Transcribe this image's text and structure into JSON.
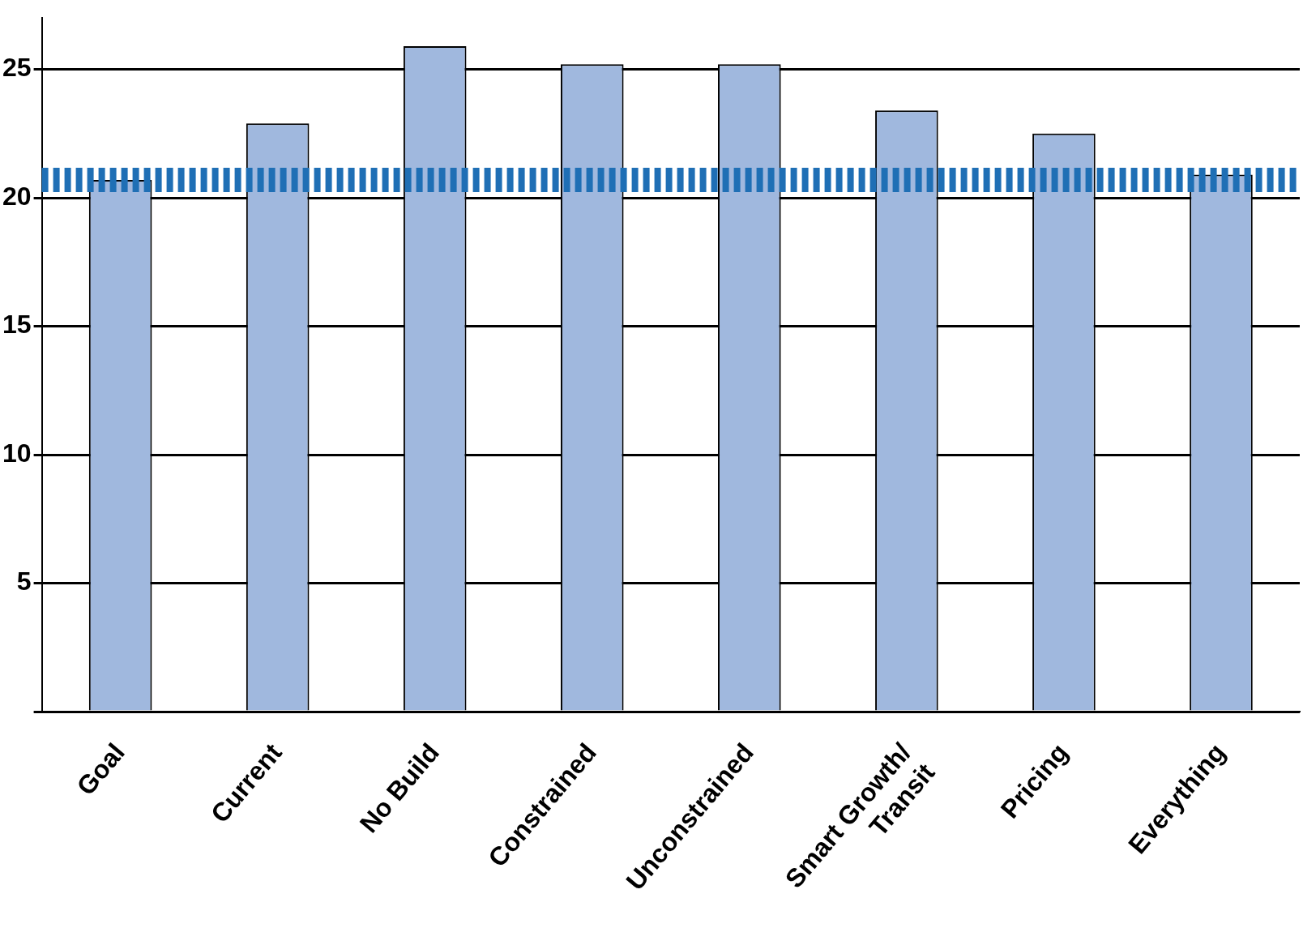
{
  "chart_data": {
    "type": "bar",
    "categories": [
      "Goal",
      "Current",
      "No Build",
      "Constrained",
      "Unconstrained",
      "Smart Growth/\nTransit",
      "Pricing",
      "Everything"
    ],
    "values": [
      20.7,
      22.9,
      25.9,
      25.2,
      25.2,
      23.4,
      22.5,
      20.9
    ],
    "color": "#a0b8de",
    "ylim": [
      0,
      27
    ],
    "yticks": [
      {
        "value": 0,
        "label": null
      },
      5,
      10,
      15,
      20,
      25
    ],
    "grid": "y",
    "legend": false,
    "ref_lines": [
      {
        "axis": "y",
        "value": 20.7,
        "color": "#1f6fb5",
        "line_style": "dashed"
      }
    ]
  }
}
